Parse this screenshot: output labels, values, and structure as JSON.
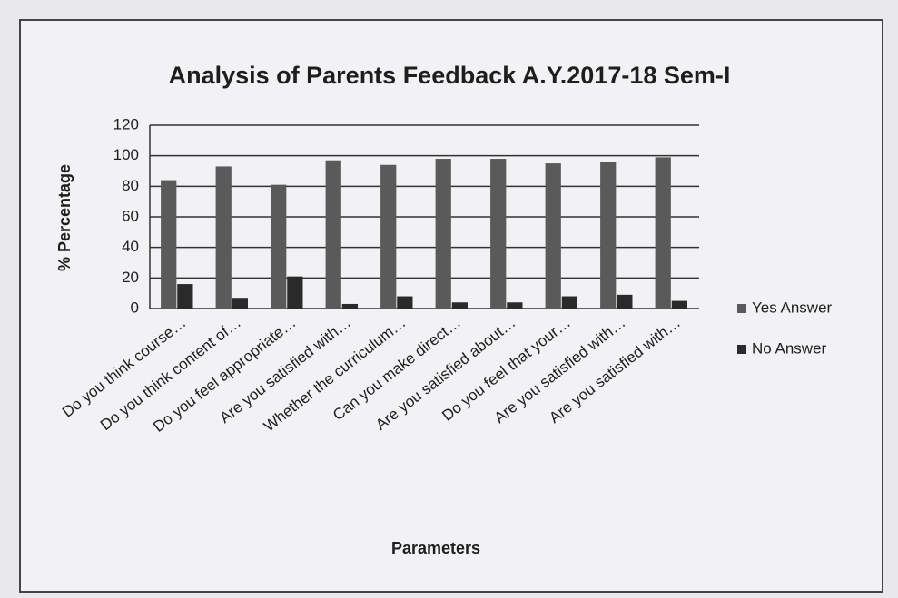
{
  "chart_data": {
    "type": "bar",
    "title": "Analysis of Parents Feedback A.Y.2017-18 Sem-I",
    "x_label": "Parameters",
    "y_label": "% Percentage",
    "categories": [
      "Do you think course…",
      "Do you think content of…",
      "Do you feel appropriate…",
      "Are you satisfied with…",
      "Whether the curriculum…",
      "Can you make direct…",
      "Are you satisfied about…",
      "Do you feel that your…",
      "Are you satisfied with…",
      "Are you satisfied with…"
    ],
    "series": [
      {
        "name": "Yes Answer",
        "color": "#5a5a5a",
        "values": [
          84,
          93,
          81,
          97,
          94,
          98,
          98,
          95,
          96,
          99
        ]
      },
      {
        "name": "No Answer",
        "color": "#2a2a2a",
        "values": [
          16,
          7,
          21,
          3,
          8,
          4,
          4,
          8,
          9,
          5
        ]
      }
    ],
    "ylim": [
      0,
      120
    ],
    "yticks": [
      0,
      20,
      40,
      60,
      80,
      100,
      120
    ],
    "grid": true,
    "legend": "right"
  }
}
